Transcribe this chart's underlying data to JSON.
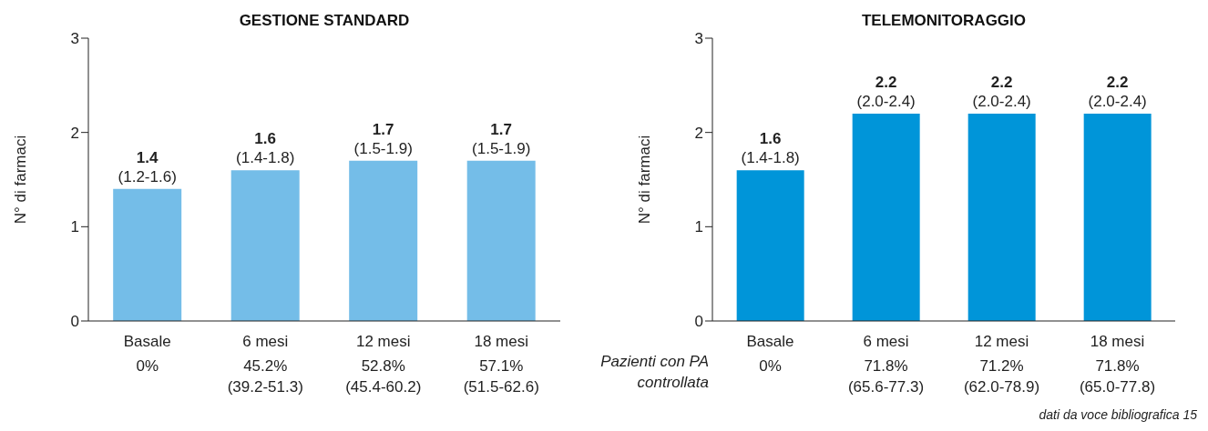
{
  "chart_data": [
    {
      "type": "bar",
      "title": "GESTIONE STANDARD",
      "ylabel": "N° di farmaci",
      "categories": [
        "Basale",
        "6 mesi",
        "12 mesi",
        "18 mesi"
      ],
      "values": [
        1.4,
        1.6,
        1.7,
        1.7
      ],
      "color": "#74bde8",
      "ylim": [
        0,
        3
      ],
      "yticks": [
        0,
        1,
        2,
        3
      ],
      "value_labels": [
        "1.4\n(1.2-1.6)",
        "1.6\n(1.4-1.8)",
        "1.7\n(1.5-1.9)",
        "1.7\n(1.5-1.9)"
      ],
      "annotations": [
        "0%",
        "45.2%\n(39.2-51.3)",
        "52.8%\n(45.4-60.2)",
        "57.1%\n(51.5-62.6)"
      ]
    },
    {
      "type": "bar",
      "title": "TELEMONITORAGGIO",
      "ylabel": "N° di farmaci",
      "categories": [
        "Basale",
        "6 mesi",
        "12 mesi",
        "18 mesi"
      ],
      "values": [
        1.6,
        2.2,
        2.2,
        2.2
      ],
      "color": "#0095d9",
      "ylim": [
        0,
        3
      ],
      "yticks": [
        0,
        1,
        2,
        3
      ],
      "value_labels": [
        "1.6\n(1.4-1.8)",
        "2.2\n(2.0-2.4)",
        "2.2\n(2.0-2.4)",
        "2.2\n(2.0-2.4)"
      ],
      "annotations": [
        "Pazienti con PA\ncontrollata",
        "dati da voce bibliografica 15",
        "0%",
        "71.8%\n(65.6-77.3)",
        "71.2%\n(62.0-78.9)",
        "71.8%\n(65.0-77.8)"
      ]
    }
  ]
}
